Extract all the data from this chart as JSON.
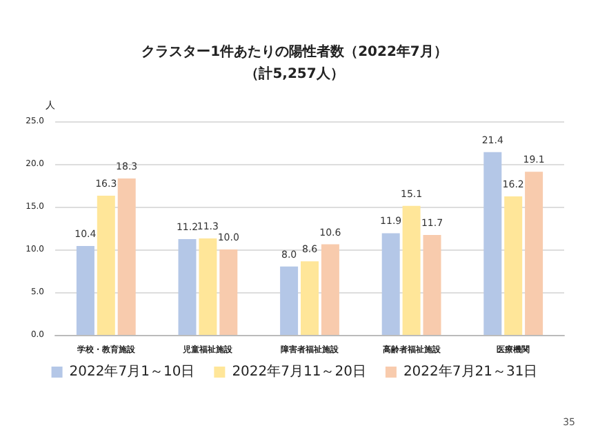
{
  "chart_data": {
    "type": "bar",
    "title": "クラスター1件あたりの陽性者数（2022年7月）",
    "subtitle": "（計5,257人）",
    "ylabel": "人",
    "categories": [
      "学校・教育施設",
      "児童福祉施設",
      "障害者福祉施設",
      "高齢者福祉施設",
      "医療機関"
    ],
    "series": [
      {
        "name": "2022年7月1～10日",
        "color": "#b4c7e7",
        "values": [
          10.4,
          11.2,
          8.0,
          11.9,
          21.4
        ],
        "value_labels": [
          "10.4",
          "11.2",
          "8.0",
          "11.9",
          "21.4"
        ]
      },
      {
        "name": "2022年7月11～20日",
        "color": "#ffe699",
        "values": [
          16.3,
          11.3,
          8.6,
          15.1,
          16.2
        ],
        "value_labels": [
          "16.3",
          "11.3",
          "8.6",
          "15.1",
          "16.2"
        ]
      },
      {
        "name": "2022年7月21～31日",
        "color": "#f8cbad",
        "values": [
          18.3,
          10.0,
          10.6,
          11.7,
          19.1
        ],
        "value_labels": [
          "18.3",
          "10.0",
          "10.6",
          "11.7",
          "19.1"
        ]
      }
    ],
    "ylim": [
      0,
      25
    ],
    "yticks": [
      {
        "value": 0,
        "label": "0.0"
      },
      {
        "value": 5,
        "label": "5.0"
      },
      {
        "value": 10,
        "label": "10.0"
      },
      {
        "value": 15,
        "label": "15.0"
      },
      {
        "value": 20,
        "label": "20.0"
      },
      {
        "value": 25,
        "label": "25.0"
      }
    ],
    "grid": "y",
    "legend": "bottom",
    "annotations": [
      "35"
    ]
  }
}
